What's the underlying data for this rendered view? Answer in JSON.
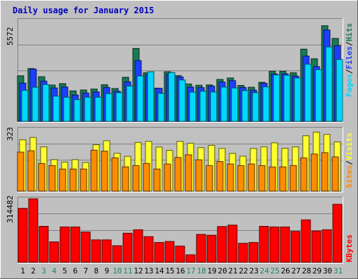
{
  "title": "Daily usage for January 2015",
  "colors": {
    "frame": "#c0c0c0",
    "panel": "#c0c0c0",
    "title": "#0000c0",
    "hits": "#1a7a54",
    "files": "#1c3fff",
    "pages": "#00d8ff",
    "visits": "#ffff30",
    "sites": "#ff8c00",
    "kbytes": "#ff0000",
    "weekend_label": "#1a8a5a",
    "weekday_label": "#000000",
    "sep_slash": "#000000"
  },
  "chart_data": [
    {
      "type": "bar",
      "panel": "hits-files-pages",
      "y_max_label": "5572",
      "ylim": [
        0,
        5572
      ],
      "x": [
        1,
        2,
        3,
        4,
        5,
        6,
        7,
        8,
        9,
        10,
        11,
        12,
        13,
        14,
        15,
        16,
        17,
        18,
        19,
        20,
        21,
        22,
        23,
        24,
        25,
        26,
        27,
        28,
        29,
        30,
        31
      ],
      "series": [
        {
          "name": "Hits",
          "values": [
            2510,
            2910,
            2460,
            2000,
            2080,
            1680,
            1730,
            1780,
            2020,
            1810,
            2430,
            4020,
            2680,
            1830,
            2730,
            2520,
            2060,
            1990,
            2010,
            2310,
            2390,
            1980,
            1880,
            2150,
            2760,
            2760,
            2680,
            3980,
            3450,
            5270,
            4570
          ]
        },
        {
          "name": "Files",
          "values": [
            2110,
            2880,
            2220,
            1840,
            1890,
            1450,
            1560,
            1620,
            1870,
            1660,
            2180,
            3350,
            2580,
            1820,
            2600,
            2450,
            1890,
            1860,
            1940,
            2170,
            2240,
            1870,
            1720,
            2100,
            2610,
            2620,
            2500,
            3600,
            3020,
            5030,
            4170
          ]
        },
        {
          "name": "Pages",
          "values": [
            1710,
            1880,
            2030,
            1390,
            1330,
            1200,
            1330,
            1330,
            1530,
            1580,
            1950,
            2500,
            2730,
            1540,
            2690,
            2280,
            1610,
            1660,
            1620,
            1890,
            1840,
            1700,
            1580,
            1900,
            2560,
            2540,
            2390,
            3150,
            2850,
            4100,
            3410
          ]
        }
      ]
    },
    {
      "type": "bar",
      "panel": "visits-sites",
      "y_max_label": "323",
      "ylim": [
        0,
        323
      ],
      "x": [
        1,
        2,
        3,
        4,
        5,
        6,
        7,
        8,
        9,
        10,
        11,
        12,
        13,
        14,
        15,
        16,
        17,
        18,
        19,
        20,
        21,
        22,
        23,
        24,
        25,
        26,
        27,
        28,
        29,
        30,
        31
      ],
      "series": [
        {
          "name": "Visits",
          "values": [
            267,
            279,
            230,
            164,
            151,
            164,
            149,
            241,
            262,
            197,
            181,
            253,
            259,
            229,
            212,
            259,
            249,
            226,
            238,
            222,
            196,
            182,
            222,
            230,
            251,
            223,
            230,
            288,
            307,
            295,
            256
          ]
        },
        {
          "name": "Sites",
          "values": [
            203,
            210,
            144,
            133,
            115,
            115,
            115,
            213,
            208,
            173,
            126,
            133,
            144,
            115,
            141,
            175,
            189,
            163,
            133,
            154,
            141,
            133,
            141,
            133,
            126,
            126,
            133,
            173,
            193,
            200,
            178
          ]
        }
      ]
    },
    {
      "type": "bar",
      "panel": "kbytes",
      "y_max_label": "314482",
      "ylim": [
        0,
        314482
      ],
      "x": [
        1,
        2,
        3,
        4,
        5,
        6,
        7,
        8,
        9,
        10,
        11,
        12,
        13,
        14,
        15,
        16,
        17,
        18,
        19,
        20,
        21,
        22,
        23,
        24,
        25,
        26,
        27,
        28,
        29,
        30,
        31
      ],
      "series": [
        {
          "name": "KBytes",
          "values": [
            267000,
            314482,
            178000,
            101000,
            175000,
            175000,
            150000,
            111000,
            111000,
            82000,
            144000,
            161000,
            127000,
            98000,
            103000,
            80000,
            37000,
            138000,
            134000,
            177000,
            184000,
            94000,
            98000,
            178000,
            175000,
            175000,
            153000,
            210000,
            155000,
            161000,
            287000
          ]
        }
      ]
    }
  ],
  "days": [
    {
      "label": "1",
      "weekend": false
    },
    {
      "label": "2",
      "weekend": false
    },
    {
      "label": "3",
      "weekend": true
    },
    {
      "label": "4",
      "weekend": true
    },
    {
      "label": "5",
      "weekend": false
    },
    {
      "label": "6",
      "weekend": false
    },
    {
      "label": "7",
      "weekend": false
    },
    {
      "label": "8",
      "weekend": false
    },
    {
      "label": "9",
      "weekend": false
    },
    {
      "label": "10",
      "weekend": true
    },
    {
      "label": "11",
      "weekend": true
    },
    {
      "label": "12",
      "weekend": false
    },
    {
      "label": "13",
      "weekend": false
    },
    {
      "label": "14",
      "weekend": false
    },
    {
      "label": "15",
      "weekend": false
    },
    {
      "label": "16",
      "weekend": false
    },
    {
      "label": "17",
      "weekend": true
    },
    {
      "label": "18",
      "weekend": true
    },
    {
      "label": "19",
      "weekend": false
    },
    {
      "label": "20",
      "weekend": false
    },
    {
      "label": "21",
      "weekend": false
    },
    {
      "label": "22",
      "weekend": false
    },
    {
      "label": "23",
      "weekend": false
    },
    {
      "label": "24",
      "weekend": true
    },
    {
      "label": "25",
      "weekend": true
    },
    {
      "label": "26",
      "weekend": false
    },
    {
      "label": "27",
      "weekend": false
    },
    {
      "label": "28",
      "weekend": false
    },
    {
      "label": "29",
      "weekend": false
    },
    {
      "label": "30",
      "weekend": false
    },
    {
      "label": "31",
      "weekend": true
    }
  ],
  "legend": {
    "top": [
      {
        "text": "Pages",
        "color_key": "pages"
      },
      {
        "text": "/",
        "color_key": "sep_slash"
      },
      {
        "text": "Files",
        "color_key": "files"
      },
      {
        "text": "/",
        "color_key": "sep_slash"
      },
      {
        "text": "Hits",
        "color_key": "hits"
      }
    ],
    "middle": [
      {
        "text": "Sites",
        "color_key": "sites"
      },
      {
        "text": "/",
        "color_key": "sep_slash"
      },
      {
        "text": "Visits",
        "color_key": "visits"
      }
    ],
    "bottom": [
      {
        "text": "KBytes",
        "color_key": "kbytes"
      }
    ]
  }
}
